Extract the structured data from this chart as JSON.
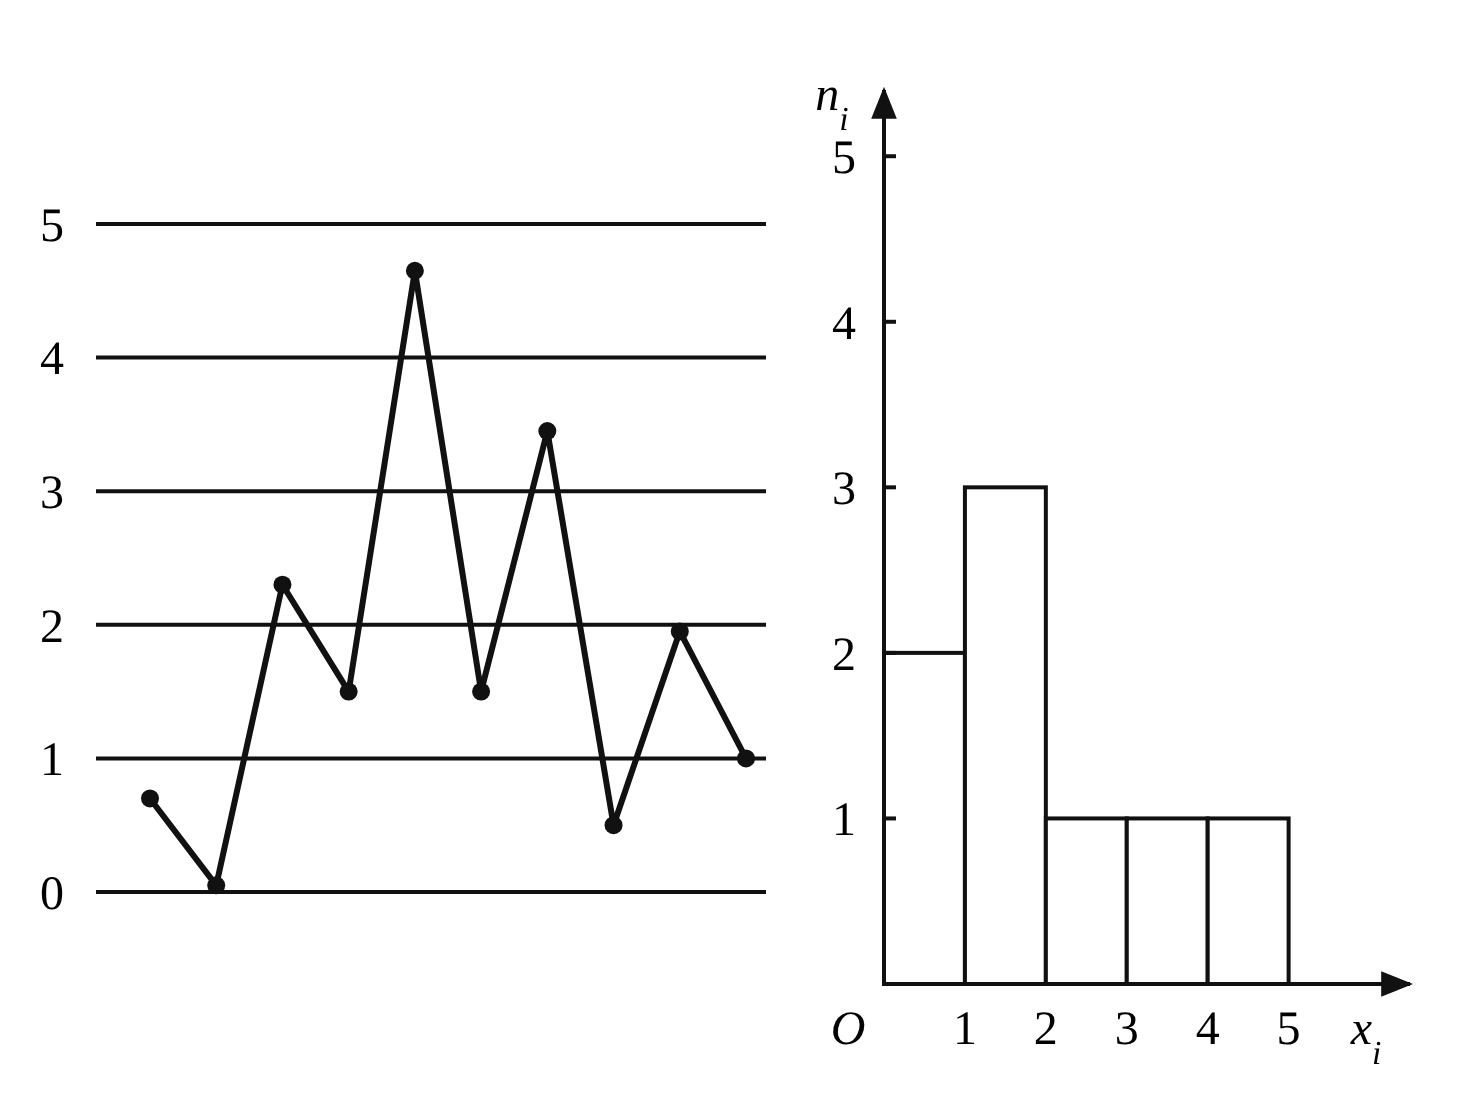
{
  "chart_data": [
    {
      "type": "line",
      "categories": [
        null,
        null,
        null,
        null,
        null,
        null,
        null,
        null,
        null,
        null
      ],
      "series": [
        {
          "color": "#111111",
          "values": [
            0.7,
            0.05,
            2.3,
            1.5,
            4.65,
            1.5,
            3.45,
            0.5,
            1.95,
            1
          ]
        }
      ],
      "ylim": [
        0,
        5
      ],
      "yticks": [
        0,
        1,
        2,
        3,
        4,
        5
      ],
      "grid": "y",
      "tick_labels": "y",
      "marker": "circle"
    },
    {
      "type": "histogram",
      "bins": [
        0,
        1,
        2,
        3,
        4,
        5
      ],
      "values": [
        2,
        3,
        1,
        1,
        1
      ],
      "color": "#ffffff",
      "xlabel": "x$_{i}$",
      "ylabel": "n$_{i}$",
      "xlim": [
        0,
        6.5
      ],
      "ylim": [
        0,
        5.4
      ],
      "xticks": [
        1,
        2,
        3,
        4,
        5
      ],
      "annotations": [
        "O"
      ],
      "yticks": [
        1,
        2,
        3,
        4,
        5
      ]
    }
  ]
}
